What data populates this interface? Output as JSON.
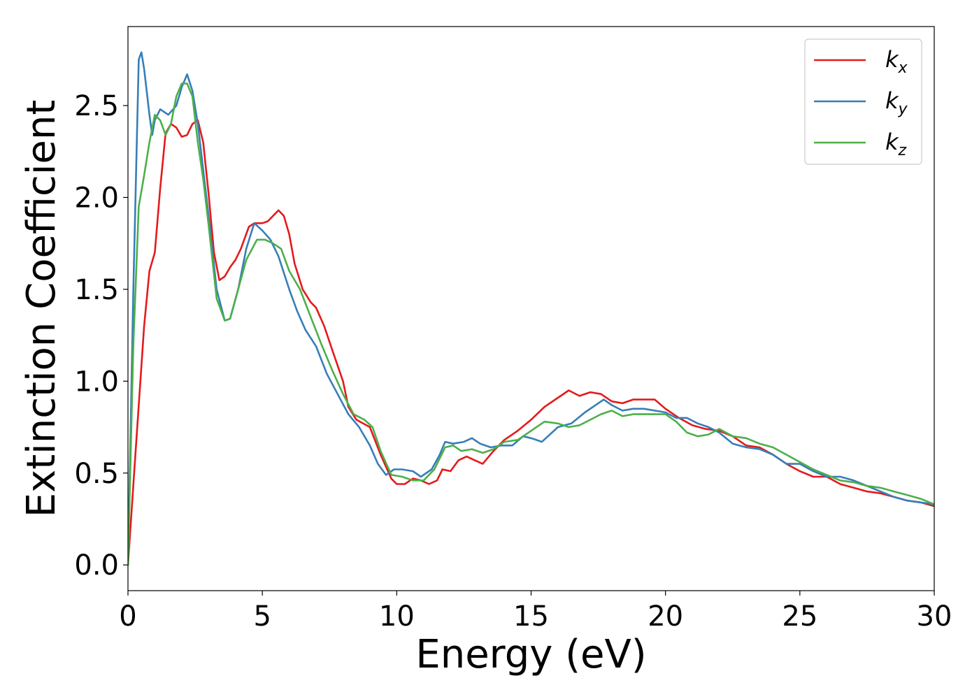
{
  "chart_data": {
    "type": "line",
    "xlabel": "Energy (eV)",
    "ylabel": "Extinction Coefficient",
    "xlim": [
      0,
      30
    ],
    "ylim": [
      -0.14,
      2.93
    ],
    "grid": false,
    "legend_position": "top-right",
    "x_ticks": [
      "0",
      "5",
      "10",
      "15",
      "20",
      "25",
      "30"
    ],
    "y_ticks": [
      "0.0",
      "0.5",
      "1.0",
      "1.5",
      "2.0",
      "2.5"
    ],
    "series": [
      {
        "name": "k",
        "subscript": "x",
        "color": "#e41a1c",
        "points": [
          [
            0,
            0
          ],
          [
            0.3,
            0.65
          ],
          [
            0.6,
            1.3
          ],
          [
            0.8,
            1.6
          ],
          [
            1.0,
            1.7
          ],
          [
            1.2,
            2.05
          ],
          [
            1.4,
            2.35
          ],
          [
            1.6,
            2.4
          ],
          [
            1.8,
            2.38
          ],
          [
            2.0,
            2.33
          ],
          [
            2.2,
            2.34
          ],
          [
            2.4,
            2.4
          ],
          [
            2.6,
            2.42
          ],
          [
            2.8,
            2.3
          ],
          [
            3.0,
            2.02
          ],
          [
            3.2,
            1.7
          ],
          [
            3.4,
            1.55
          ],
          [
            3.6,
            1.57
          ],
          [
            3.8,
            1.62
          ],
          [
            4.0,
            1.66
          ],
          [
            4.2,
            1.72
          ],
          [
            4.5,
            1.84
          ],
          [
            4.7,
            1.86
          ],
          [
            5.0,
            1.86
          ],
          [
            5.2,
            1.87
          ],
          [
            5.4,
            1.9
          ],
          [
            5.6,
            1.93
          ],
          [
            5.8,
            1.9
          ],
          [
            6.0,
            1.8
          ],
          [
            6.2,
            1.64
          ],
          [
            6.5,
            1.5
          ],
          [
            6.8,
            1.43
          ],
          [
            7.0,
            1.4
          ],
          [
            7.3,
            1.3
          ],
          [
            7.6,
            1.17
          ],
          [
            8.0,
            1.0
          ],
          [
            8.2,
            0.86
          ],
          [
            8.5,
            0.79
          ],
          [
            9.0,
            0.75
          ],
          [
            9.4,
            0.6
          ],
          [
            9.8,
            0.47
          ],
          [
            10.0,
            0.44
          ],
          [
            10.3,
            0.44
          ],
          [
            10.6,
            0.47
          ],
          [
            10.9,
            0.46
          ],
          [
            11.2,
            0.44
          ],
          [
            11.5,
            0.46
          ],
          [
            11.7,
            0.52
          ],
          [
            12.0,
            0.51
          ],
          [
            12.3,
            0.57
          ],
          [
            12.6,
            0.59
          ],
          [
            12.9,
            0.57
          ],
          [
            13.2,
            0.55
          ],
          [
            13.6,
            0.62
          ],
          [
            14.0,
            0.68
          ],
          [
            14.5,
            0.73
          ],
          [
            15.0,
            0.79
          ],
          [
            15.5,
            0.86
          ],
          [
            16.0,
            0.91
          ],
          [
            16.4,
            0.95
          ],
          [
            16.8,
            0.92
          ],
          [
            17.2,
            0.94
          ],
          [
            17.6,
            0.93
          ],
          [
            18.0,
            0.89
          ],
          [
            18.4,
            0.88
          ],
          [
            18.8,
            0.9
          ],
          [
            19.2,
            0.9
          ],
          [
            19.6,
            0.9
          ],
          [
            20.0,
            0.85
          ],
          [
            20.5,
            0.8
          ],
          [
            21.0,
            0.76
          ],
          [
            21.5,
            0.74
          ],
          [
            22.0,
            0.73
          ],
          [
            22.5,
            0.7
          ],
          [
            23.0,
            0.65
          ],
          [
            23.5,
            0.64
          ],
          [
            24.0,
            0.6
          ],
          [
            24.5,
            0.55
          ],
          [
            25.0,
            0.51
          ],
          [
            25.5,
            0.48
          ],
          [
            26.0,
            0.48
          ],
          [
            26.5,
            0.44
          ],
          [
            27.0,
            0.42
          ],
          [
            27.5,
            0.4
          ],
          [
            28.0,
            0.39
          ],
          [
            28.5,
            0.37
          ],
          [
            29.0,
            0.35
          ],
          [
            29.5,
            0.34
          ],
          [
            30.0,
            0.32
          ]
        ]
      },
      {
        "name": "k",
        "subscript": "y",
        "color": "#377eb8",
        "points": [
          [
            0,
            0
          ],
          [
            0.2,
            1.5
          ],
          [
            0.4,
            2.75
          ],
          [
            0.5,
            2.79
          ],
          [
            0.6,
            2.7
          ],
          [
            0.8,
            2.45
          ],
          [
            0.9,
            2.34
          ],
          [
            1.0,
            2.42
          ],
          [
            1.2,
            2.48
          ],
          [
            1.5,
            2.45
          ],
          [
            1.8,
            2.5
          ],
          [
            2.0,
            2.6
          ],
          [
            2.2,
            2.67
          ],
          [
            2.4,
            2.58
          ],
          [
            2.6,
            2.4
          ],
          [
            2.8,
            2.15
          ],
          [
            3.0,
            1.9
          ],
          [
            3.3,
            1.5
          ],
          [
            3.6,
            1.33
          ],
          [
            3.8,
            1.34
          ],
          [
            4.1,
            1.5
          ],
          [
            4.4,
            1.72
          ],
          [
            4.7,
            1.86
          ],
          [
            5.0,
            1.82
          ],
          [
            5.3,
            1.77
          ],
          [
            5.6,
            1.68
          ],
          [
            6.0,
            1.5
          ],
          [
            6.3,
            1.38
          ],
          [
            6.6,
            1.28
          ],
          [
            7.0,
            1.19
          ],
          [
            7.4,
            1.04
          ],
          [
            7.8,
            0.93
          ],
          [
            8.2,
            0.82
          ],
          [
            8.6,
            0.75
          ],
          [
            9.0,
            0.65
          ],
          [
            9.3,
            0.55
          ],
          [
            9.6,
            0.49
          ],
          [
            9.9,
            0.52
          ],
          [
            10.2,
            0.52
          ],
          [
            10.6,
            0.51
          ],
          [
            10.9,
            0.48
          ],
          [
            11.3,
            0.52
          ],
          [
            11.6,
            0.6
          ],
          [
            11.8,
            0.67
          ],
          [
            12.1,
            0.66
          ],
          [
            12.5,
            0.67
          ],
          [
            12.8,
            0.69
          ],
          [
            13.1,
            0.66
          ],
          [
            13.5,
            0.64
          ],
          [
            13.9,
            0.65
          ],
          [
            14.3,
            0.65
          ],
          [
            14.7,
            0.7
          ],
          [
            15.0,
            0.69
          ],
          [
            15.4,
            0.67
          ],
          [
            15.7,
            0.71
          ],
          [
            16.0,
            0.75
          ],
          [
            16.5,
            0.77
          ],
          [
            17.0,
            0.83
          ],
          [
            17.5,
            0.88
          ],
          [
            17.7,
            0.9
          ],
          [
            18.0,
            0.87
          ],
          [
            18.4,
            0.84
          ],
          [
            18.8,
            0.85
          ],
          [
            19.2,
            0.85
          ],
          [
            19.6,
            0.84
          ],
          [
            20.0,
            0.83
          ],
          [
            20.4,
            0.8
          ],
          [
            20.8,
            0.8
          ],
          [
            21.2,
            0.77
          ],
          [
            21.6,
            0.75
          ],
          [
            22.0,
            0.72
          ],
          [
            22.5,
            0.66
          ],
          [
            23.0,
            0.64
          ],
          [
            23.5,
            0.63
          ],
          [
            24.0,
            0.6
          ],
          [
            24.5,
            0.55
          ],
          [
            25.0,
            0.55
          ],
          [
            25.5,
            0.51
          ],
          [
            26.0,
            0.48
          ],
          [
            26.5,
            0.48
          ],
          [
            27.0,
            0.46
          ],
          [
            27.5,
            0.43
          ],
          [
            28.0,
            0.4
          ],
          [
            28.5,
            0.37
          ],
          [
            29.0,
            0.35
          ],
          [
            29.5,
            0.34
          ],
          [
            30.0,
            0.33
          ]
        ]
      },
      {
        "name": "k",
        "subscript": "z",
        "color": "#4daf4a",
        "points": [
          [
            0,
            0
          ],
          [
            0.2,
            1.2
          ],
          [
            0.4,
            1.95
          ],
          [
            0.6,
            2.12
          ],
          [
            0.8,
            2.3
          ],
          [
            1.0,
            2.45
          ],
          [
            1.2,
            2.42
          ],
          [
            1.4,
            2.34
          ],
          [
            1.6,
            2.4
          ],
          [
            1.8,
            2.55
          ],
          [
            2.0,
            2.62
          ],
          [
            2.2,
            2.62
          ],
          [
            2.4,
            2.55
          ],
          [
            2.6,
            2.3
          ],
          [
            2.8,
            2.1
          ],
          [
            3.0,
            1.85
          ],
          [
            3.3,
            1.45
          ],
          [
            3.6,
            1.33
          ],
          [
            3.8,
            1.34
          ],
          [
            4.1,
            1.5
          ],
          [
            4.4,
            1.66
          ],
          [
            4.8,
            1.77
          ],
          [
            5.1,
            1.77
          ],
          [
            5.4,
            1.75
          ],
          [
            5.7,
            1.72
          ],
          [
            6.0,
            1.6
          ],
          [
            6.4,
            1.5
          ],
          [
            6.8,
            1.35
          ],
          [
            7.2,
            1.2
          ],
          [
            7.6,
            1.06
          ],
          [
            8.0,
            0.93
          ],
          [
            8.4,
            0.82
          ],
          [
            8.8,
            0.79
          ],
          [
            9.1,
            0.75
          ],
          [
            9.4,
            0.62
          ],
          [
            9.8,
            0.49
          ],
          [
            10.2,
            0.48
          ],
          [
            10.6,
            0.46
          ],
          [
            11.0,
            0.46
          ],
          [
            11.4,
            0.52
          ],
          [
            11.8,
            0.64
          ],
          [
            12.1,
            0.65
          ],
          [
            12.4,
            0.62
          ],
          [
            12.8,
            0.63
          ],
          [
            13.2,
            0.61
          ],
          [
            13.6,
            0.63
          ],
          [
            14.0,
            0.67
          ],
          [
            14.5,
            0.68
          ],
          [
            15.0,
            0.73
          ],
          [
            15.5,
            0.78
          ],
          [
            16.0,
            0.77
          ],
          [
            16.4,
            0.75
          ],
          [
            16.8,
            0.76
          ],
          [
            17.2,
            0.79
          ],
          [
            17.6,
            0.82
          ],
          [
            18.0,
            0.84
          ],
          [
            18.4,
            0.81
          ],
          [
            18.8,
            0.82
          ],
          [
            19.2,
            0.82
          ],
          [
            19.6,
            0.82
          ],
          [
            20.0,
            0.82
          ],
          [
            20.4,
            0.78
          ],
          [
            20.8,
            0.72
          ],
          [
            21.2,
            0.7
          ],
          [
            21.6,
            0.71
          ],
          [
            22.0,
            0.74
          ],
          [
            22.5,
            0.7
          ],
          [
            23.0,
            0.69
          ],
          [
            23.5,
            0.66
          ],
          [
            24.0,
            0.64
          ],
          [
            24.5,
            0.6
          ],
          [
            25.0,
            0.56
          ],
          [
            25.5,
            0.52
          ],
          [
            26.0,
            0.49
          ],
          [
            26.5,
            0.46
          ],
          [
            27.0,
            0.45
          ],
          [
            27.5,
            0.43
          ],
          [
            28.0,
            0.42
          ],
          [
            28.5,
            0.4
          ],
          [
            29.0,
            0.38
          ],
          [
            29.5,
            0.36
          ],
          [
            30.0,
            0.33
          ]
        ]
      }
    ]
  }
}
